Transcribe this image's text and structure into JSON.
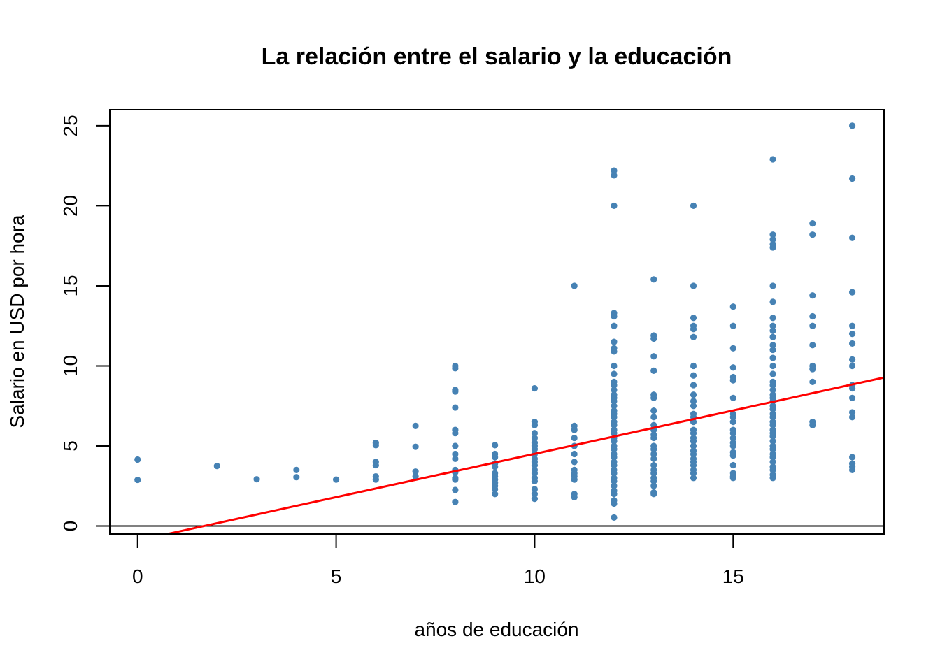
{
  "chart_data": {
    "type": "scatter",
    "title": "La relación entre el salario y la educación",
    "xlabel": "años de educación",
    "ylabel": "Salario en USD por hora",
    "xlim": [
      -0.7,
      18.8
    ],
    "ylim": [
      -0.5,
      26.0
    ],
    "x_ticks": [
      0,
      5,
      10,
      15
    ],
    "y_ticks": [
      0,
      5,
      10,
      15,
      20,
      25
    ],
    "x_tick_labels": [
      "0",
      "5",
      "10",
      "15"
    ],
    "y_tick_labels": [
      "0",
      "5",
      "10",
      "15",
      "20",
      "25"
    ],
    "grid": false,
    "hline_y": 0,
    "colors": {
      "points": "#4682B4",
      "regression": "#FF0000",
      "axes": "#000000"
    },
    "series": [
      {
        "type": "scatter",
        "points": [
          [
            0,
            4.15
          ],
          [
            0,
            2.88
          ],
          [
            2,
            3.75
          ],
          [
            3,
            2.92
          ],
          [
            4,
            3.5
          ],
          [
            4,
            3.05
          ],
          [
            5,
            2.9
          ],
          [
            6,
            5.2
          ],
          [
            6,
            5.05
          ],
          [
            6,
            4.0
          ],
          [
            6,
            3.8
          ],
          [
            6,
            3.1
          ],
          [
            6,
            2.9
          ],
          [
            7,
            6.25
          ],
          [
            7,
            4.95
          ],
          [
            7,
            3.4
          ],
          [
            7,
            3.1
          ],
          [
            8,
            10.0
          ],
          [
            8,
            9.85
          ],
          [
            8,
            8.5
          ],
          [
            8,
            8.4
          ],
          [
            8,
            7.4
          ],
          [
            8,
            6.0
          ],
          [
            8,
            5.8
          ],
          [
            8,
            5.0
          ],
          [
            8,
            4.5
          ],
          [
            8,
            4.2
          ],
          [
            8,
            3.5
          ],
          [
            8,
            3.35
          ],
          [
            8,
            3.0
          ],
          [
            8,
            2.9
          ],
          [
            8,
            2.25
          ],
          [
            8,
            1.5
          ],
          [
            9,
            5.05
          ],
          [
            9,
            4.5
          ],
          [
            9,
            4.3
          ],
          [
            9,
            3.9
          ],
          [
            9,
            3.7
          ],
          [
            9,
            3.3
          ],
          [
            9,
            3.1
          ],
          [
            9,
            2.9
          ],
          [
            9,
            2.7
          ],
          [
            9,
            2.5
          ],
          [
            9,
            2.3
          ],
          [
            9,
            2.0
          ],
          [
            10,
            8.6
          ],
          [
            10,
            6.5
          ],
          [
            10,
            6.3
          ],
          [
            10,
            5.8
          ],
          [
            10,
            5.5
          ],
          [
            10,
            5.2
          ],
          [
            10,
            5.0
          ],
          [
            10,
            4.8
          ],
          [
            10,
            4.5
          ],
          [
            10,
            4.2
          ],
          [
            10,
            4.0
          ],
          [
            10,
            3.8
          ],
          [
            10,
            3.5
          ],
          [
            10,
            3.3
          ],
          [
            10,
            3.0
          ],
          [
            10,
            2.8
          ],
          [
            10,
            2.3
          ],
          [
            10,
            2.0
          ],
          [
            10,
            1.7
          ],
          [
            11,
            15.0
          ],
          [
            11,
            6.25
          ],
          [
            11,
            6.0
          ],
          [
            11,
            5.5
          ],
          [
            11,
            5.0
          ],
          [
            11,
            4.5
          ],
          [
            11,
            4.0
          ],
          [
            11,
            3.5
          ],
          [
            11,
            3.3
          ],
          [
            11,
            3.1
          ],
          [
            11,
            2.9
          ],
          [
            11,
            2.0
          ],
          [
            11,
            1.8
          ],
          [
            12,
            22.2
          ],
          [
            12,
            21.9
          ],
          [
            12,
            20.0
          ],
          [
            12,
            13.3
          ],
          [
            12,
            13.1
          ],
          [
            12,
            12.5
          ],
          [
            12,
            11.5
          ],
          [
            12,
            11.1
          ],
          [
            12,
            10.9
          ],
          [
            12,
            10.0
          ],
          [
            12,
            9.5
          ],
          [
            12,
            9.0
          ],
          [
            12,
            8.8
          ],
          [
            12,
            8.5
          ],
          [
            12,
            8.2
          ],
          [
            12,
            8.0
          ],
          [
            12,
            7.8
          ],
          [
            12,
            7.5
          ],
          [
            12,
            7.2
          ],
          [
            12,
            7.0
          ],
          [
            12,
            6.8
          ],
          [
            12,
            6.5
          ],
          [
            12,
            6.3
          ],
          [
            12,
            6.0
          ],
          [
            12,
            5.8
          ],
          [
            12,
            5.5
          ],
          [
            12,
            5.3
          ],
          [
            12,
            5.0
          ],
          [
            12,
            4.8
          ],
          [
            12,
            4.5
          ],
          [
            12,
            4.3
          ],
          [
            12,
            4.0
          ],
          [
            12,
            3.8
          ],
          [
            12,
            3.5
          ],
          [
            12,
            3.3
          ],
          [
            12,
            3.0
          ],
          [
            12,
            2.8
          ],
          [
            12,
            2.5
          ],
          [
            12,
            2.2
          ],
          [
            12,
            2.0
          ],
          [
            12,
            1.6
          ],
          [
            12,
            1.4
          ],
          [
            12,
            0.53
          ],
          [
            13,
            15.4
          ],
          [
            13,
            11.9
          ],
          [
            13,
            11.7
          ],
          [
            13,
            10.6
          ],
          [
            13,
            9.7
          ],
          [
            13,
            8.2
          ],
          [
            13,
            8.0
          ],
          [
            13,
            7.2
          ],
          [
            13,
            6.8
          ],
          [
            13,
            6.3
          ],
          [
            13,
            6.0
          ],
          [
            13,
            5.7
          ],
          [
            13,
            5.5
          ],
          [
            13,
            5.0
          ],
          [
            13,
            4.8
          ],
          [
            13,
            4.5
          ],
          [
            13,
            4.2
          ],
          [
            13,
            3.8
          ],
          [
            13,
            3.5
          ],
          [
            13,
            3.3
          ],
          [
            13,
            3.0
          ],
          [
            13,
            2.8
          ],
          [
            13,
            2.5
          ],
          [
            13,
            2.1
          ],
          [
            13,
            2.0
          ],
          [
            14,
            20.0
          ],
          [
            14,
            15.0
          ],
          [
            14,
            13.0
          ],
          [
            14,
            12.5
          ],
          [
            14,
            12.3
          ],
          [
            14,
            11.8
          ],
          [
            14,
            10.0
          ],
          [
            14,
            9.4
          ],
          [
            14,
            8.8
          ],
          [
            14,
            8.2
          ],
          [
            14,
            7.8
          ],
          [
            14,
            7.5
          ],
          [
            14,
            7.0
          ],
          [
            14,
            6.8
          ],
          [
            14,
            6.5
          ],
          [
            14,
            6.0
          ],
          [
            14,
            5.8
          ],
          [
            14,
            5.5
          ],
          [
            14,
            5.3
          ],
          [
            14,
            5.0
          ],
          [
            14,
            4.7
          ],
          [
            14,
            4.5
          ],
          [
            14,
            4.2
          ],
          [
            14,
            4.0
          ],
          [
            14,
            3.8
          ],
          [
            14,
            3.5
          ],
          [
            14,
            3.3
          ],
          [
            14,
            3.0
          ],
          [
            15,
            13.7
          ],
          [
            15,
            12.5
          ],
          [
            15,
            11.1
          ],
          [
            15,
            9.9
          ],
          [
            15,
            9.3
          ],
          [
            15,
            9.1
          ],
          [
            15,
            8.0
          ],
          [
            15,
            7.0
          ],
          [
            15,
            6.8
          ],
          [
            15,
            6.5
          ],
          [
            15,
            6.0
          ],
          [
            15,
            5.8
          ],
          [
            15,
            5.5
          ],
          [
            15,
            5.2
          ],
          [
            15,
            5.0
          ],
          [
            15,
            4.6
          ],
          [
            15,
            4.4
          ],
          [
            15,
            3.8
          ],
          [
            15,
            3.3
          ],
          [
            15,
            3.1
          ],
          [
            15,
            3.0
          ],
          [
            16,
            22.9
          ],
          [
            16,
            18.2
          ],
          [
            16,
            17.9
          ],
          [
            16,
            17.6
          ],
          [
            16,
            17.4
          ],
          [
            16,
            15.0
          ],
          [
            16,
            14.0
          ],
          [
            16,
            13.0
          ],
          [
            16,
            12.5
          ],
          [
            16,
            12.2
          ],
          [
            16,
            11.8
          ],
          [
            16,
            11.3
          ],
          [
            16,
            11.0
          ],
          [
            16,
            10.5
          ],
          [
            16,
            10.0
          ],
          [
            16,
            9.5
          ],
          [
            16,
            9.0
          ],
          [
            16,
            8.8
          ],
          [
            16,
            8.5
          ],
          [
            16,
            8.2
          ],
          [
            16,
            8.0
          ],
          [
            16,
            7.8
          ],
          [
            16,
            7.5
          ],
          [
            16,
            7.3
          ],
          [
            16,
            7.0
          ],
          [
            16,
            6.8
          ],
          [
            16,
            6.5
          ],
          [
            16,
            6.3
          ],
          [
            16,
            6.0
          ],
          [
            16,
            5.8
          ],
          [
            16,
            5.6
          ],
          [
            16,
            5.3
          ],
          [
            16,
            5.0
          ],
          [
            16,
            4.8
          ],
          [
            16,
            4.5
          ],
          [
            16,
            4.3
          ],
          [
            16,
            4.0
          ],
          [
            16,
            3.7
          ],
          [
            16,
            3.5
          ],
          [
            16,
            3.2
          ],
          [
            16,
            3.0
          ],
          [
            17,
            18.9
          ],
          [
            17,
            18.2
          ],
          [
            17,
            14.4
          ],
          [
            17,
            13.1
          ],
          [
            17,
            12.5
          ],
          [
            17,
            11.3
          ],
          [
            17,
            10.0
          ],
          [
            17,
            9.8
          ],
          [
            17,
            9.0
          ],
          [
            17,
            6.5
          ],
          [
            17,
            6.3
          ],
          [
            18,
            25.0
          ],
          [
            18,
            21.7
          ],
          [
            18,
            18.0
          ],
          [
            18,
            14.6
          ],
          [
            18,
            12.5
          ],
          [
            18,
            12.0
          ],
          [
            18,
            11.4
          ],
          [
            18,
            10.4
          ],
          [
            18,
            10.0
          ],
          [
            18,
            8.8
          ],
          [
            18,
            8.6
          ],
          [
            18,
            8.0
          ],
          [
            18,
            7.1
          ],
          [
            18,
            6.8
          ],
          [
            18,
            4.3
          ],
          [
            18,
            3.9
          ],
          [
            18,
            3.7
          ],
          [
            18,
            3.5
          ]
        ]
      },
      {
        "type": "line",
        "intercept": -0.905,
        "slope": 0.5414
      }
    ]
  }
}
